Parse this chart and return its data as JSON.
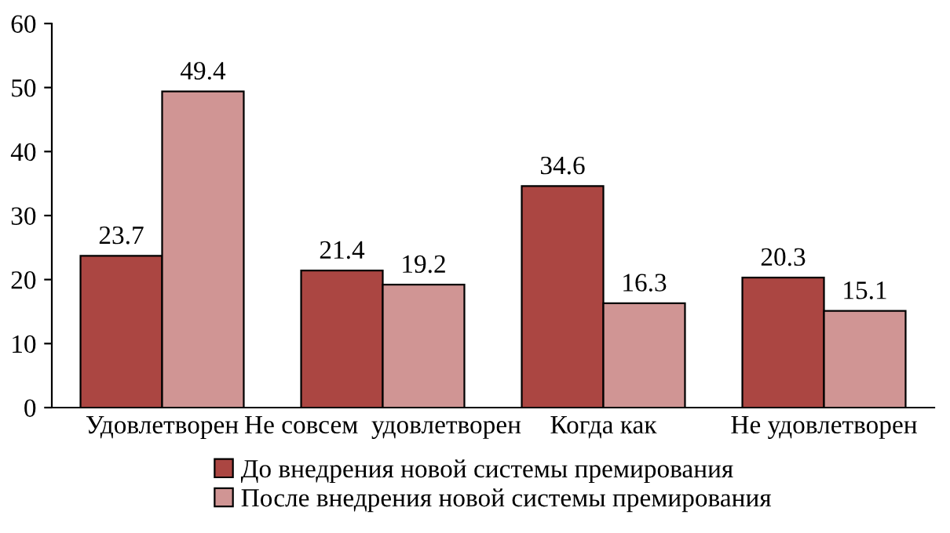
{
  "chart_data": {
    "type": "bar",
    "categories": [
      "Удовлетворен",
      "Не совсем  удовлетворен",
      "Когда как",
      "Не удовлетворен"
    ],
    "series": [
      {
        "name": "До внедрения новой системы премирования",
        "color": "#ab4642",
        "values": [
          23.7,
          21.4,
          34.6,
          20.3
        ]
      },
      {
        "name": "После внедрения новой системы премирования",
        "color": "#d09594",
        "values": [
          49.4,
          19.2,
          16.3,
          15.1
        ]
      }
    ],
    "ylim": [
      0,
      60
    ],
    "yticks": [
      0,
      10,
      20,
      30,
      40,
      50,
      60
    ],
    "data_labels": true,
    "grid": false,
    "legend": "bottom"
  }
}
